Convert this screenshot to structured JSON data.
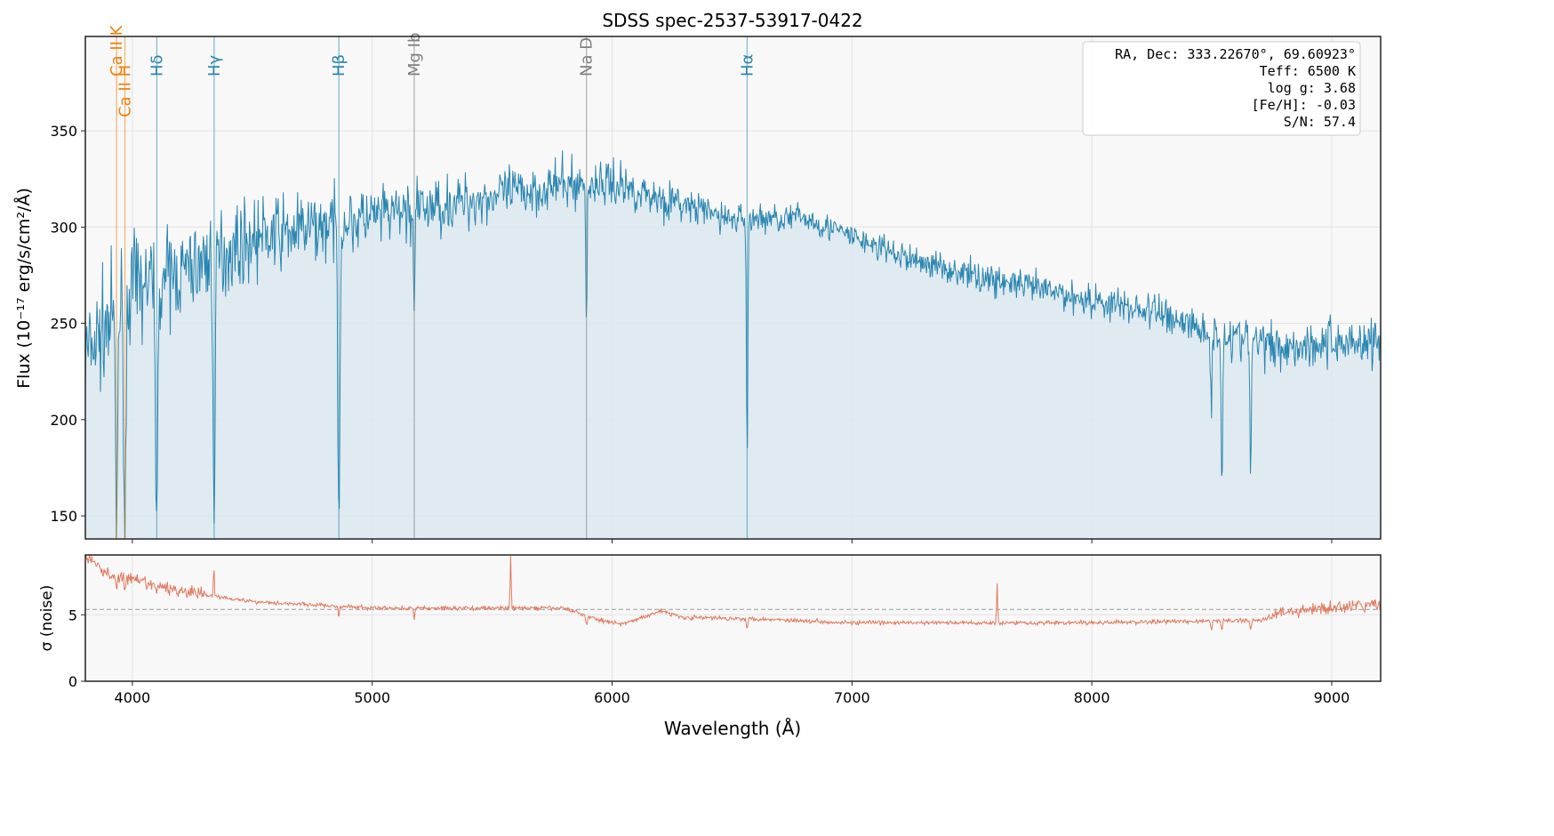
{
  "chart_data": [
    {
      "type": "line",
      "title": "SDSS spec-2537-53917-0422",
      "xlabel": "Wavelength (Å)",
      "ylabel": "Flux (10⁻¹⁷ erg/s/cm²/Å)",
      "xlim": [
        3804,
        9204
      ],
      "ylim": [
        138,
        399
      ],
      "xticks": [
        4000,
        5000,
        6000,
        7000,
        8000,
        9000
      ],
      "yticks": [
        150,
        200,
        250,
        300,
        350
      ],
      "grid": true,
      "colors": {
        "flux": "#2a86b0",
        "fill": "#dce8ef",
        "balmer": "#2a86b0",
        "calcium": "#f0820f",
        "metal": "#808080"
      },
      "continuum": {
        "wavelength": [
          3800,
          4000,
          4200,
          4500,
          5000,
          5500,
          5800,
          6000,
          6200,
          6500,
          6800,
          7000,
          7200,
          7500,
          8000,
          8300,
          8500,
          8800,
          9000,
          9200
        ],
        "flux": [
          232,
          268,
          276,
          294,
          305,
          316,
          322,
          323,
          315,
          304,
          305,
          295,
          285,
          275,
          262,
          255,
          245,
          238,
          240,
          241
        ]
      },
      "noise_amplitude": {
        "wavelength": [
          3800,
          4300,
          5000,
          6000,
          6500,
          7000,
          8000,
          9200
        ],
        "flux": [
          28,
          22,
          16,
          12,
          8,
          7,
          9,
          14
        ]
      },
      "absorption_lines": [
        {
          "wavelength": 3934,
          "min_flux": 138
        },
        {
          "wavelength": 3969,
          "min_flux": 138
        },
        {
          "wavelength": 4102,
          "min_flux": 138
        },
        {
          "wavelength": 4341,
          "min_flux": 146
        },
        {
          "wavelength": 4861,
          "min_flux": 149
        },
        {
          "wavelength": 5175,
          "min_flux": 251
        },
        {
          "wavelength": 5893,
          "min_flux": 249
        },
        {
          "wavelength": 6563,
          "min_flux": 178
        },
        {
          "wavelength": 8498,
          "min_flux": 201
        },
        {
          "wavelength": 8542,
          "min_flux": 165
        },
        {
          "wavelength": 8662,
          "min_flux": 168
        }
      ],
      "line_markers": [
        {
          "label": "Ca II K",
          "wavelength": 3934,
          "group": "calcium"
        },
        {
          "label": "Ca II H",
          "wavelength": 3969,
          "group": "calcium"
        },
        {
          "label": "Hδ",
          "wavelength": 4102,
          "group": "balmer"
        },
        {
          "label": "Hγ",
          "wavelength": 4341,
          "group": "balmer"
        },
        {
          "label": "Hβ",
          "wavelength": 4861,
          "group": "balmer"
        },
        {
          "label": "Mg Ib",
          "wavelength": 5175,
          "group": "metal"
        },
        {
          "label": "Na D",
          "wavelength": 5893,
          "group": "metal"
        },
        {
          "label": "Hα",
          "wavelength": 6563,
          "group": "balmer"
        }
      ],
      "info_box": [
        "RA, Dec: 333.22670°, 69.60923°",
        "Teff: 6500 K",
        "log g: 3.68",
        "[Fe/H]: -0.03",
        "S/N: 57.4"
      ]
    },
    {
      "type": "line",
      "ylabel": "σ (noise)",
      "xlim": [
        3804,
        9204
      ],
      "ylim": [
        0,
        9.5
      ],
      "yticks": [
        0,
        5
      ],
      "reference_line": 5.4,
      "color": "#e07a5f",
      "sigma": {
        "wavelength": [
          3800,
          3900,
          4000,
          4200,
          4500,
          5000,
          5800,
          5950,
          6050,
          6200,
          6300,
          6600,
          7000,
          8000,
          8700,
          8800,
          9200
        ],
        "value": [
          9.5,
          8.0,
          7.6,
          6.8,
          6.0,
          5.5,
          5.5,
          4.6,
          4.3,
          5.3,
          4.8,
          4.7,
          4.4,
          4.4,
          4.6,
          5.2,
          5.8
        ]
      },
      "spikes": [
        {
          "wavelength": 4340,
          "value": 9.5
        },
        {
          "wavelength": 5577,
          "value": 9.5
        },
        {
          "wavelength": 7605,
          "value": 7.4
        }
      ]
    }
  ]
}
